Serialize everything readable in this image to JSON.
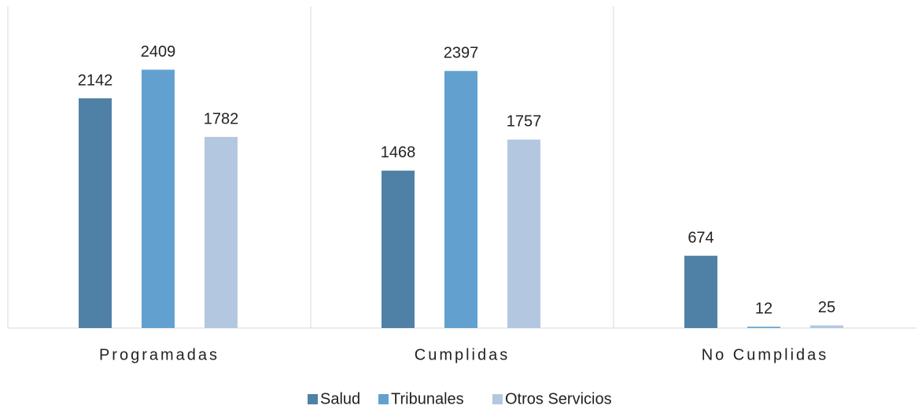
{
  "chart_data": {
    "type": "bar",
    "categories": [
      "Programadas",
      "Cumplidas",
      "No Cumplidas"
    ],
    "series": [
      {
        "name": "Salud",
        "color": "#4f81a6",
        "values": [
          2142,
          1468,
          674
        ]
      },
      {
        "name": "Tribunales",
        "color": "#62a1cf",
        "values": [
          2409,
          2397,
          12
        ]
      },
      {
        "name": "Otros Servicios",
        "color": "#b3c8e0",
        "values": [
          1782,
          1757,
          25
        ]
      }
    ],
    "ylim": [
      0,
      3000
    ],
    "legend": "bottom"
  }
}
